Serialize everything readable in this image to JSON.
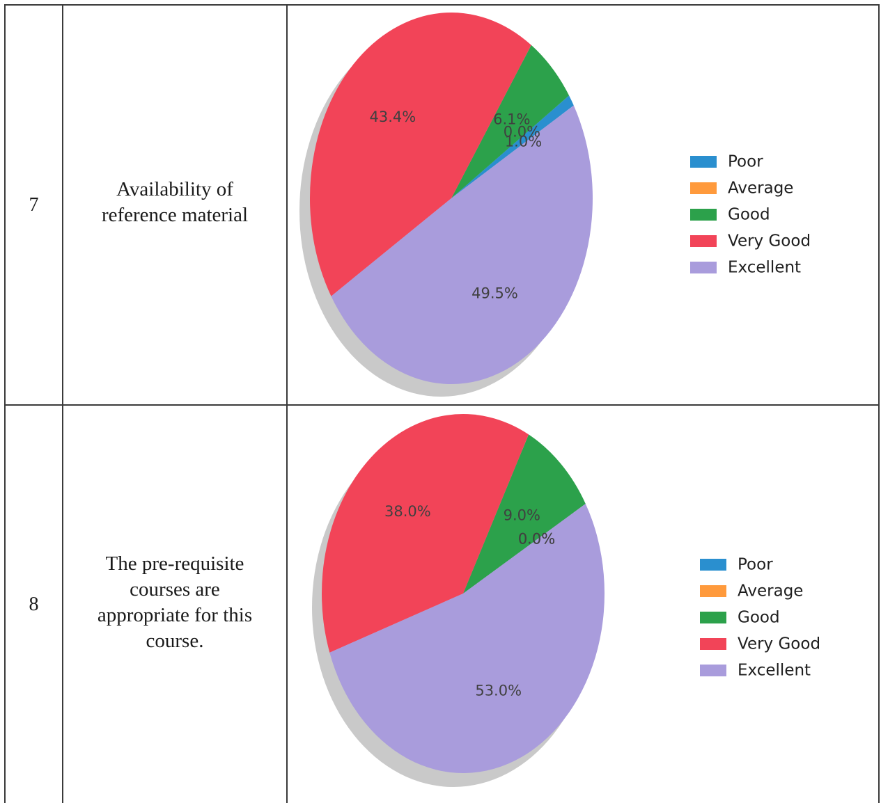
{
  "table": {
    "rows": [
      {
        "number": "7",
        "question_lines": [
          "Availability of",
          "reference material"
        ]
      },
      {
        "number": "8",
        "question_lines": [
          "The pre-requisite",
          "courses are",
          "appropriate for this",
          "course."
        ]
      }
    ]
  },
  "chart_data": [
    {
      "type": "pie",
      "categories": [
        "Poor",
        "Average",
        "Good",
        "Very Good",
        "Excellent"
      ],
      "values": [
        1.0,
        0.0,
        6.1,
        43.4,
        49.5
      ],
      "labels": [
        "1.0%",
        "0.0%",
        "6.1%",
        "43.4%",
        "49.5%"
      ],
      "colors": [
        "#2a8fcf",
        "#ff9a3c",
        "#2ca14b",
        "#f24458",
        "#a99cdc"
      ],
      "legend": "right"
    },
    {
      "type": "pie",
      "categories": [
        "Poor",
        "Average",
        "Good",
        "Very Good",
        "Excellent"
      ],
      "values": [
        0.0,
        0.0,
        9.0,
        38.0,
        53.0
      ],
      "labels": [
        "0.0%",
        "0.0%",
        "9.0%",
        "38.0%",
        "53.0%"
      ],
      "colors": [
        "#2a8fcf",
        "#ff9a3c",
        "#2ca14b",
        "#f24458",
        "#a99cdc"
      ],
      "legend": "right"
    }
  ]
}
